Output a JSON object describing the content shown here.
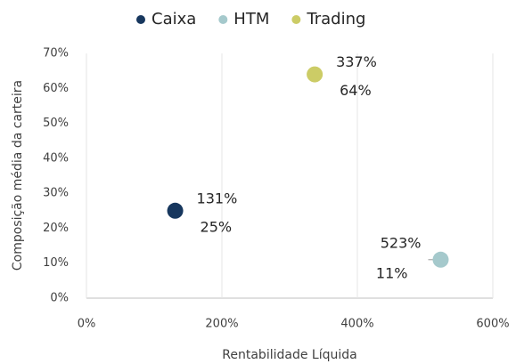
{
  "chart_data": {
    "type": "scatter",
    "x_label": "Rentabilidade Líquida",
    "y_label": "Composição média da carteira",
    "series": [
      {
        "name": "Caixa",
        "color": "#17375e",
        "x": [
          131
        ],
        "values": [
          25
        ],
        "x_labels": [
          "131%"
        ],
        "value_labels": [
          "25%"
        ]
      },
      {
        "name": "HTM",
        "color": "#a5c9cc",
        "x": [
          523
        ],
        "values": [
          11
        ],
        "x_labels": [
          "523%"
        ],
        "value_labels": [
          "11%"
        ]
      },
      {
        "name": "Trading",
        "color": "#cccc66",
        "x": [
          337
        ],
        "values": [
          64
        ],
        "x_labels": [
          "337%"
        ],
        "value_labels": [
          "64%"
        ]
      }
    ],
    "xlim": [
      0,
      600
    ],
    "xticks": [
      {
        "value": 0,
        "label": "0%"
      },
      {
        "value": 200,
        "label": "200%"
      },
      {
        "value": 400,
        "label": "400%"
      },
      {
        "value": 600,
        "label": "600%"
      }
    ],
    "ylim": [
      0,
      70
    ],
    "yticks": [
      {
        "value": 0,
        "label": "0%"
      },
      {
        "value": 10,
        "label": "10%"
      },
      {
        "value": 20,
        "label": "20%"
      },
      {
        "value": 30,
        "label": "30%"
      },
      {
        "value": 40,
        "label": "40%"
      },
      {
        "value": 50,
        "label": "50%"
      },
      {
        "value": 60,
        "label": "60%"
      },
      {
        "value": 70,
        "label": "70%"
      }
    ],
    "grid": "x",
    "legend": "top"
  }
}
